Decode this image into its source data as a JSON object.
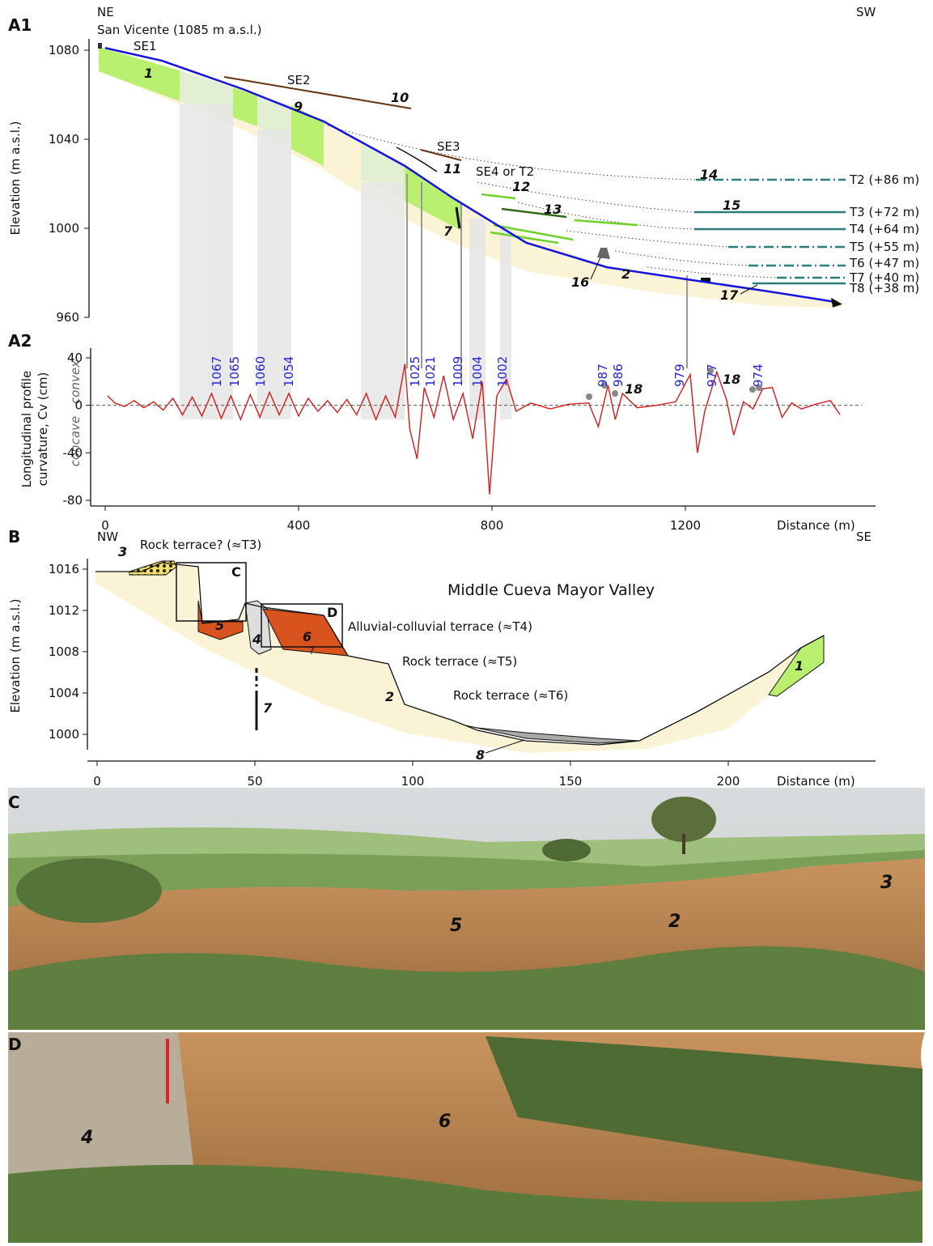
{
  "a1": {
    "panel": "A1",
    "left_direction": "NE",
    "right_direction": "SW",
    "site": "San Vicente (1085 m a.s.l.)",
    "y_label": "Elevation (m a.s.l.)",
    "ylim": [
      960,
      1085
    ],
    "yticks": [
      960,
      1000,
      1040,
      1080
    ],
    "xlim": [
      0,
      1590
    ],
    "profile": {
      "x": [
        0,
        117,
        285,
        452,
        620,
        720,
        871,
        1038,
        1206,
        1374,
        1508
      ],
      "y": [
        1081,
        1075.3,
        1062.5,
        1048,
        1028,
        1013.5,
        993.5,
        982.5,
        977,
        971.6,
        967
      ]
    },
    "surfaces": [
      "SE1",
      "SE2",
      "SE3",
      "SE4 or T2"
    ],
    "units": [
      "1",
      "9",
      "10",
      "11",
      "12",
      "13",
      "14",
      "15",
      "7",
      "16",
      "2",
      "17"
    ],
    "terraces": [
      "T2 (+86 m)",
      "T3 (+72 m)",
      "T4 (+64 m)",
      "T5 (+55 m)",
      "T6 (+47 m)",
      "T7 (+40 m)",
      "T8 (+38 m)"
    ]
  },
  "a2": {
    "panel": "A2",
    "y_label_top": "Longitudinal profile",
    "y_label_bottom": "curvature, Cv (cm)",
    "convex": "convex",
    "concave": "concave",
    "ylim": [
      -80,
      40
    ],
    "yticks": [
      -80,
      -40,
      0,
      40
    ],
    "xlim": [
      0,
      1590
    ],
    "xticks": [
      0,
      400,
      800,
      1200
    ],
    "x_label": "Distance (m)",
    "curvature": {
      "x": [
        5,
        20,
        40,
        60,
        80,
        100,
        120,
        140,
        160,
        180,
        200,
        220,
        240,
        260,
        280,
        300,
        320,
        340,
        360,
        380,
        400,
        420,
        440,
        460,
        480,
        500,
        520,
        540,
        560,
        580,
        600,
        620,
        630,
        645,
        660,
        680,
        700,
        720,
        740,
        760,
        780,
        795,
        810,
        830,
        850,
        880,
        920,
        960,
        1000,
        1020,
        1040,
        1055,
        1070,
        1100,
        1140,
        1180,
        1210,
        1225,
        1240,
        1265,
        1285,
        1300,
        1320,
        1340,
        1360,
        1380,
        1400,
        1420,
        1440,
        1470,
        1500,
        1520
      ],
      "y": [
        8,
        2,
        -1,
        4,
        -2,
        3,
        -4,
        6,
        -8,
        7,
        -9,
        10,
        -11,
        8,
        -12,
        9,
        -10,
        11,
        -8,
        10,
        -9,
        6,
        -5,
        4,
        -6,
        5,
        -8,
        10,
        -12,
        8,
        -10,
        35,
        -20,
        -45,
        15,
        -10,
        25,
        -12,
        10,
        -28,
        20,
        -75,
        8,
        22,
        -5,
        2,
        -3,
        1,
        2,
        -18,
        17,
        -12,
        10,
        -2,
        0,
        3,
        26,
        -40,
        -5,
        28,
        5,
        -25,
        3,
        -3,
        14,
        15,
        -10,
        2,
        -3,
        1,
        4,
        -8
      ]
    },
    "peak_labels": [
      "1067",
      "1065",
      "1060",
      "1054",
      "1025",
      "1021",
      "1009",
      "1004",
      "1002",
      "987",
      "986",
      "979",
      "977",
      "974"
    ],
    "unit_labels": [
      "18",
      "18"
    ]
  },
  "b": {
    "panel": "B",
    "left_direction": "NW",
    "right_direction": "SE",
    "title": "Middle Cueva Mayor Valley",
    "y_label": "Elevation (m a.s.l.)",
    "ylim": [
      998.5,
      1017
    ],
    "yticks": [
      1000,
      1004,
      1008,
      1012,
      1016
    ],
    "xlim": [
      0,
      245
    ],
    "xticks": [
      0,
      50,
      100,
      150,
      200
    ],
    "x_label": "Distance (m)",
    "features": [
      "Rock terrace? (≈T3)",
      "Alluvial-colluvial terrace (≈T4)",
      "Rock terrace (≈T5)",
      "Rock terrace (≈T6)"
    ],
    "units": [
      "3",
      "5",
      "4",
      "6",
      "?",
      "1",
      "2",
      "7",
      "8"
    ],
    "boxes": [
      "C",
      "D"
    ]
  },
  "c": {
    "panel": "C",
    "units": [
      "5",
      "2",
      "3"
    ]
  },
  "d": {
    "panel": "D",
    "units": [
      "4",
      "6"
    ]
  }
}
